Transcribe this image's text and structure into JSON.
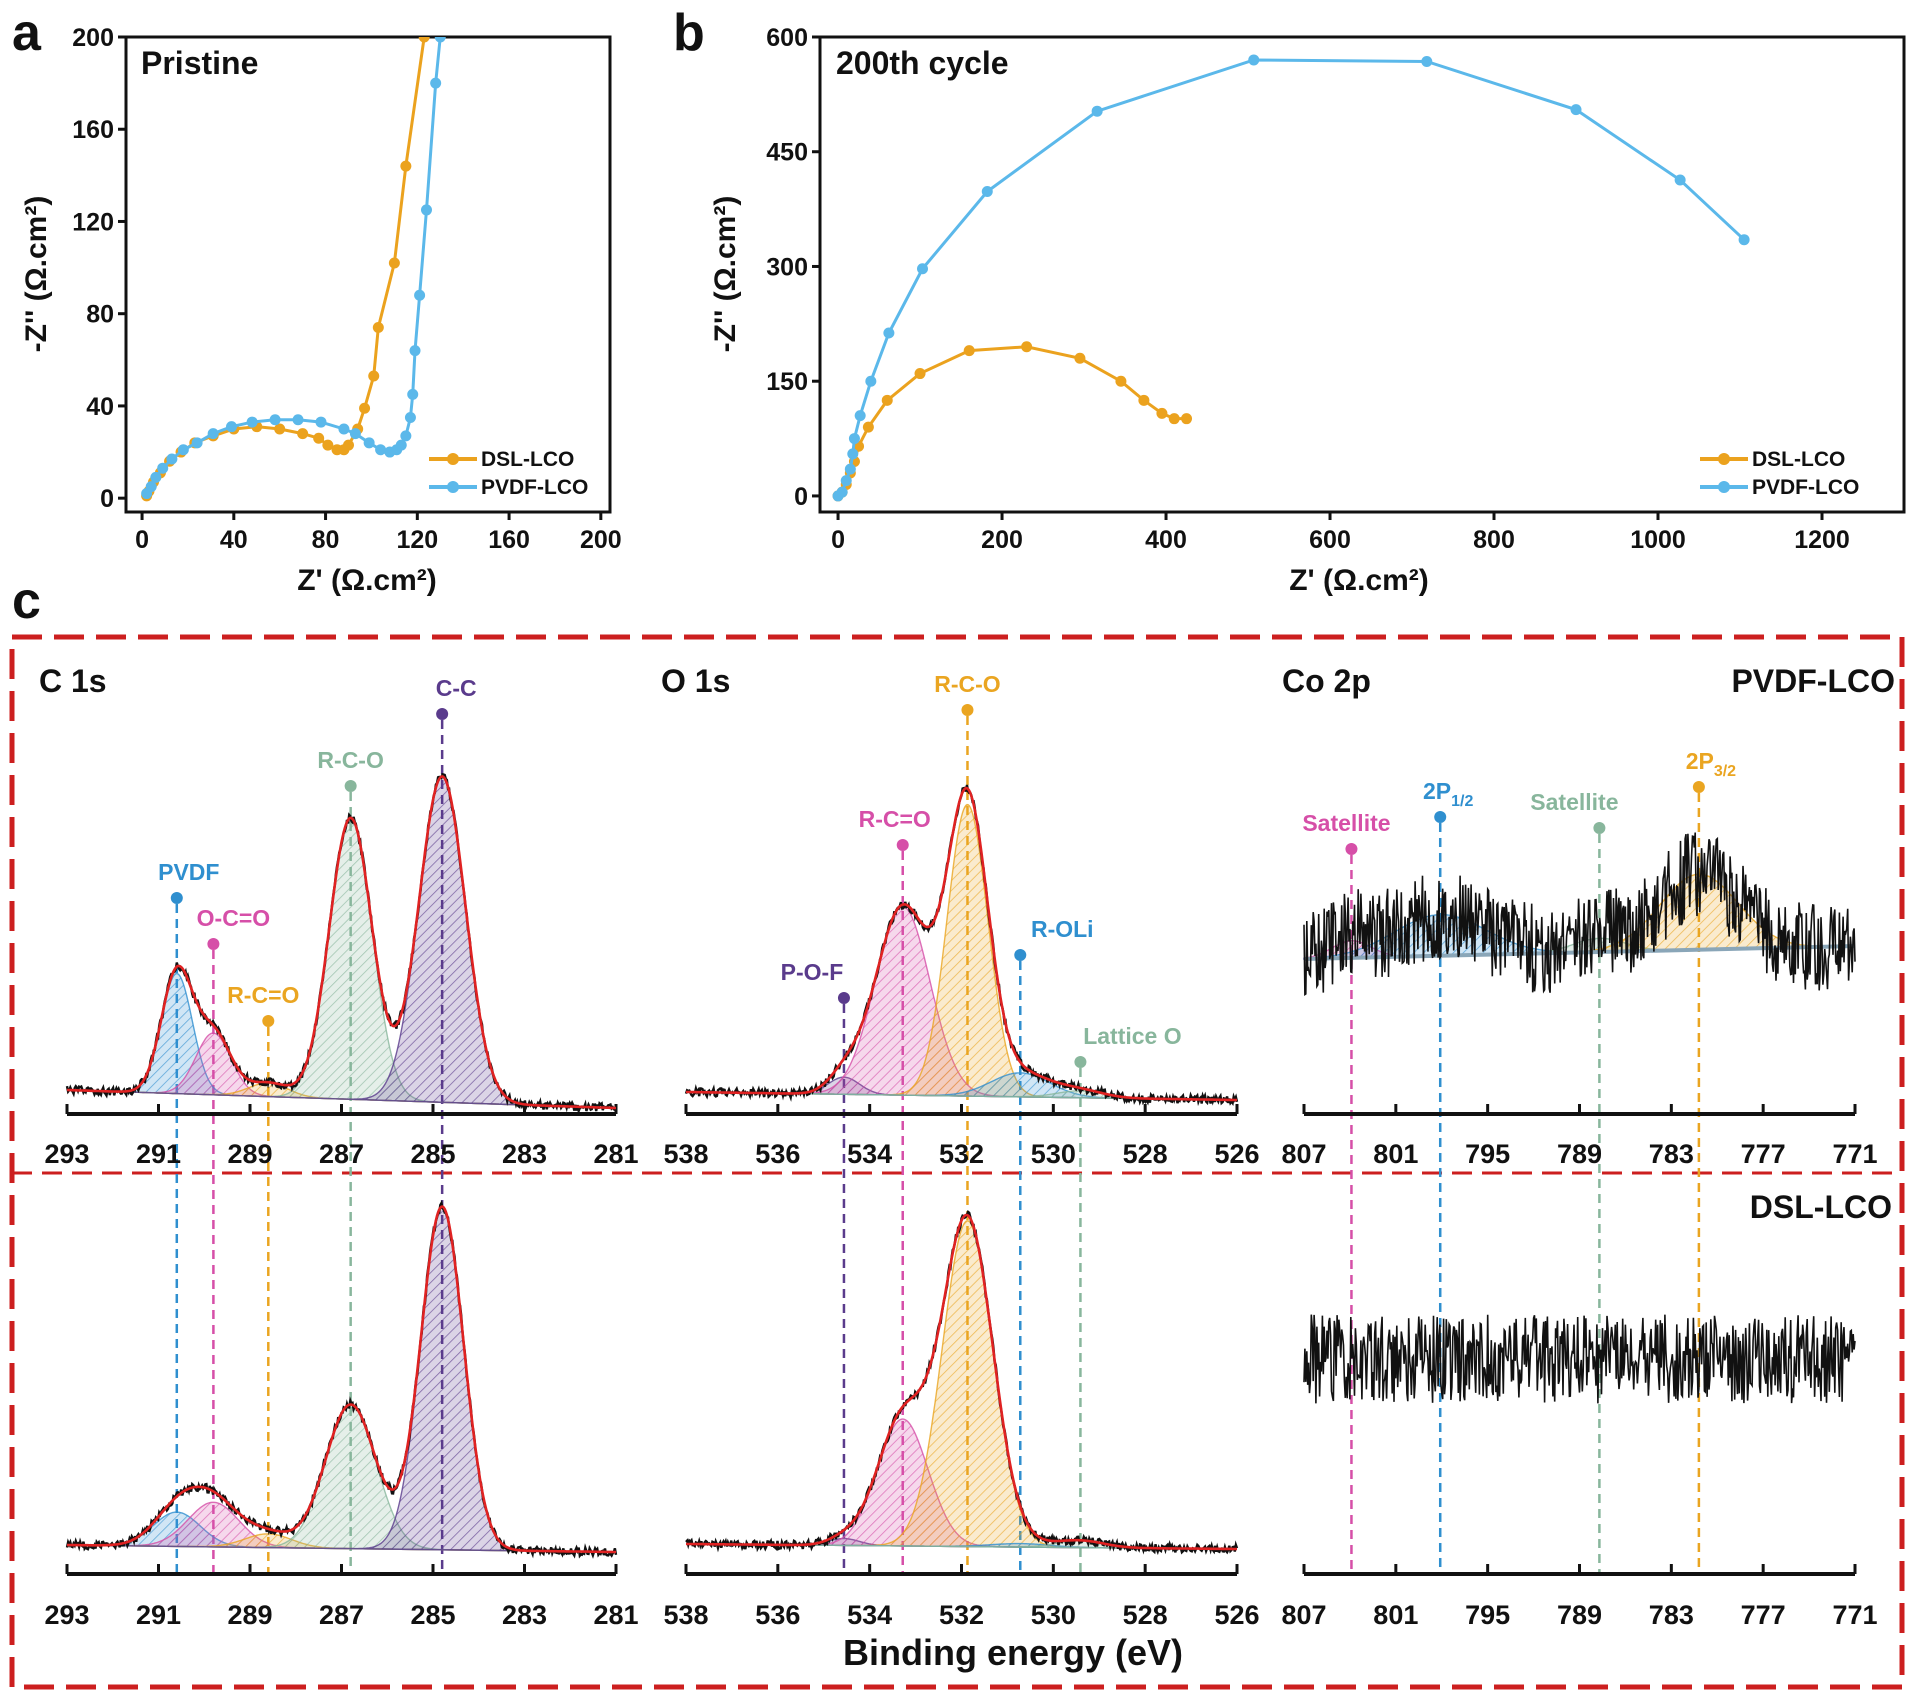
{
  "figure": {
    "letters": [
      "a",
      "b",
      "c"
    ]
  },
  "chart_data": [
    {
      "panel": "a",
      "type": "line",
      "title": "Pristine",
      "xlabel": "Z' (Ω.cm²)",
      "ylabel": "-Z'' (Ω.cm²)",
      "xlim": [
        -7,
        204
      ],
      "ylim": [
        -6,
        200
      ],
      "xticks": [
        0,
        40,
        80,
        120,
        160,
        200
      ],
      "yticks": [
        0,
        40,
        80,
        120,
        160,
        200
      ],
      "legend": "bottom-right",
      "series": [
        {
          "name": "DSL-LCO",
          "color": "#EBA21E",
          "points": [
            [
              2,
              1
            ],
            [
              3,
              3
            ],
            [
              5,
              7
            ],
            [
              8,
              11
            ],
            [
              12,
              16
            ],
            [
              17,
              20
            ],
            [
              23,
              24
            ],
            [
              31,
              27
            ],
            [
              40,
              30
            ],
            [
              50,
              31
            ],
            [
              60,
              30
            ],
            [
              70,
              28
            ],
            [
              77,
              26
            ],
            [
              81,
              23
            ],
            [
              85,
              21
            ],
            [
              88,
              21
            ],
            [
              90,
              23
            ],
            [
              94,
              30
            ],
            [
              97,
              39
            ],
            [
              101,
              53
            ],
            [
              103,
              74
            ],
            [
              110,
              102
            ],
            [
              115,
              144
            ],
            [
              123,
              200
            ]
          ]
        },
        {
          "name": "PVDF-LCO",
          "color": "#5BB8EA",
          "points": [
            [
              2,
              2
            ],
            [
              4,
              5
            ],
            [
              6,
              9
            ],
            [
              9,
              13
            ],
            [
              13,
              17
            ],
            [
              18,
              21
            ],
            [
              24,
              24
            ],
            [
              31,
              28
            ],
            [
              39,
              31
            ],
            [
              48,
              33
            ],
            [
              58,
              34
            ],
            [
              68,
              34
            ],
            [
              78,
              33
            ],
            [
              88,
              30
            ],
            [
              93,
              28
            ],
            [
              99,
              24
            ],
            [
              104,
              21
            ],
            [
              108,
              20
            ],
            [
              111,
              21
            ],
            [
              113,
              23
            ],
            [
              115,
              27
            ],
            [
              117,
              35
            ],
            [
              118,
              45
            ],
            [
              119,
              64
            ],
            [
              121,
              88
            ],
            [
              124,
              125
            ],
            [
              128,
              180
            ],
            [
              130,
              200
            ]
          ]
        }
      ]
    },
    {
      "panel": "b",
      "type": "line",
      "title": "200th  cycle",
      "xlabel": "Z' (Ω.cm²)",
      "ylabel": "-Z'' (Ω.cm²)",
      "xlim": [
        -22,
        1300
      ],
      "ylim": [
        -21,
        600
      ],
      "xticks": [
        0,
        200,
        400,
        600,
        800,
        1000,
        1200
      ],
      "yticks": [
        0,
        150,
        300,
        450,
        600
      ],
      "legend": "bottom-right",
      "series": [
        {
          "name": "DSL-LCO",
          "color": "#EBA21E",
          "points": [
            [
              0,
              0
            ],
            [
              5,
              5
            ],
            [
              10,
              15
            ],
            [
              15,
              30
            ],
            [
              20,
              45
            ],
            [
              25,
              65
            ],
            [
              37,
              90
            ],
            [
              60,
              125
            ],
            [
              100,
              160
            ],
            [
              160,
              190
            ],
            [
              230,
              195
            ],
            [
              295,
              180
            ],
            [
              345,
              150
            ],
            [
              373,
              125
            ],
            [
              395,
              108
            ],
            [
              410,
              101
            ],
            [
              425,
              101
            ]
          ]
        },
        {
          "name": "PVDF-LCO",
          "color": "#5BB8EA",
          "points": [
            [
              0,
              0
            ],
            [
              5,
              5
            ],
            [
              10,
              20
            ],
            [
              15,
              35
            ],
            [
              18,
              55
            ],
            [
              20,
              75
            ],
            [
              27,
              105
            ],
            [
              40,
              150
            ],
            [
              62,
              213
            ],
            [
              103,
              297
            ],
            [
              182,
              398
            ],
            [
              316,
              503
            ],
            [
              507,
              570
            ],
            [
              718,
              568
            ],
            [
              900,
              505
            ],
            [
              1027,
              413
            ],
            [
              1105,
              335
            ]
          ]
        }
      ]
    },
    {
      "panel": "c",
      "type": "line",
      "xlabel": "Binding energy (eV)",
      "samples": [
        "PVDF-LCO",
        "DSL-LCO"
      ],
      "colors": {
        "envelope": "#E02222",
        "raw": "#111111",
        "frame": "#CC1F1F",
        "background": "#8AA6B8"
      },
      "spectra": [
        {
          "title": "C 1s",
          "xlim": [
            293,
            281
          ],
          "xticks": [
            293,
            291,
            289,
            287,
            285,
            283,
            281
          ],
          "peaks": [
            {
              "label": "PVDF",
              "color": "#2F8FCF",
              "center": 290.6
            },
            {
              "label": "O-C=O",
              "color": "#D64FA8",
              "center": 289.8
            },
            {
              "label": "R-C=O",
              "color": "#EAA521",
              "center": 288.6
            },
            {
              "label": "R-C-O",
              "color": "#88B69C",
              "center": 286.8
            },
            {
              "label": "C-C",
              "color": "#5A3B8C",
              "center": 284.8
            }
          ],
          "fits": {
            "PVDF-LCO": [
              {
                "amp": 0.35,
                "fwhm": 0.8
              },
              {
                "amp": 0.18,
                "fwhm": 0.9
              },
              {
                "amp": 0.04,
                "fwhm": 1.0
              },
              {
                "amp": 0.82,
                "fwhm": 1.1
              },
              {
                "amp": 0.95,
                "fwhm": 1.2
              }
            ],
            "DSL-LCO": [
              {
                "amp": 0.1,
                "fwhm": 1.2
              },
              {
                "amp": 0.13,
                "fwhm": 1.3
              },
              {
                "amp": 0.04,
                "fwhm": 1.2
              },
              {
                "amp": 0.42,
                "fwhm": 1.3
              },
              {
                "amp": 1.0,
                "fwhm": 1.1
              }
            ]
          },
          "noise": {
            "PVDF-LCO": 0.012,
            "DSL-LCO": 0.012
          }
        },
        {
          "title": "O 1s",
          "xlim": [
            538,
            526
          ],
          "xticks": [
            538,
            536,
            534,
            532,
            530,
            528,
            526
          ],
          "peaks": [
            {
              "label": "P-O-F",
              "color": "#5A3B8C",
              "center": 534.56
            },
            {
              "label": "R-C=O",
              "color": "#D64FA8",
              "center": 533.28
            },
            {
              "label": "R-C-O",
              "color": "#EAA521",
              "center": 531.87
            },
            {
              "label": "R-OLi",
              "color": "#2F8FCF",
              "center": 530.72
            },
            {
              "label": "Lattice O",
              "color": "#88B69C",
              "center": 529.41
            }
          ],
          "fits": {
            "PVDF-LCO": [
              {
                "amp": 0.05,
                "fwhm": 0.8
              },
              {
                "amp": 0.55,
                "fwhm": 1.4
              },
              {
                "amp": 0.85,
                "fwhm": 1.05
              },
              {
                "amp": 0.07,
                "fwhm": 1.5
              },
              {
                "amp": 0.02,
                "fwhm": 1.2
              }
            ],
            "DSL-LCO": [
              {
                "amp": 0.02,
                "fwhm": 0.8
              },
              {
                "amp": 0.37,
                "fwhm": 1.3
              },
              {
                "amp": 0.95,
                "fwhm": 1.3
              },
              {
                "amp": 0.01,
                "fwhm": 1.5
              },
              {
                "amp": 0.02,
                "fwhm": 1.2
              }
            ]
          },
          "noise": {
            "PVDF-LCO": 0.012,
            "DSL-LCO": 0.012
          }
        },
        {
          "title": "Co 2p",
          "xlim": [
            807,
            771
          ],
          "xticks": [
            807,
            801,
            795,
            789,
            783,
            777,
            771
          ],
          "peaks": [
            {
              "label": "Satellite",
              "color": "#D64FA8",
              "center": 803.9
            },
            {
              "label": "2P",
              "sub": "1/2",
              "color": "#2F8FCF",
              "center": 798.1
            },
            {
              "label": "Satellite",
              "color": "#88B69C",
              "center": 787.7
            },
            {
              "label": "2P",
              "sub": "3/2",
              "color": "#EAA521",
              "center": 781.2
            }
          ],
          "fits": {
            "PVDF-LCO": [
              {
                "amp": 0.05,
                "fwhm": 3
              },
              {
                "amp": 0.12,
                "fwhm": 7
              },
              {
                "amp": 0.04,
                "fwhm": 4
              },
              {
                "amp": 0.22,
                "fwhm": 6
              }
            ],
            "DSL-LCO": []
          },
          "noise": {
            "PVDF-LCO": 0.13,
            "DSL-LCO": 0.13
          }
        }
      ]
    }
  ]
}
